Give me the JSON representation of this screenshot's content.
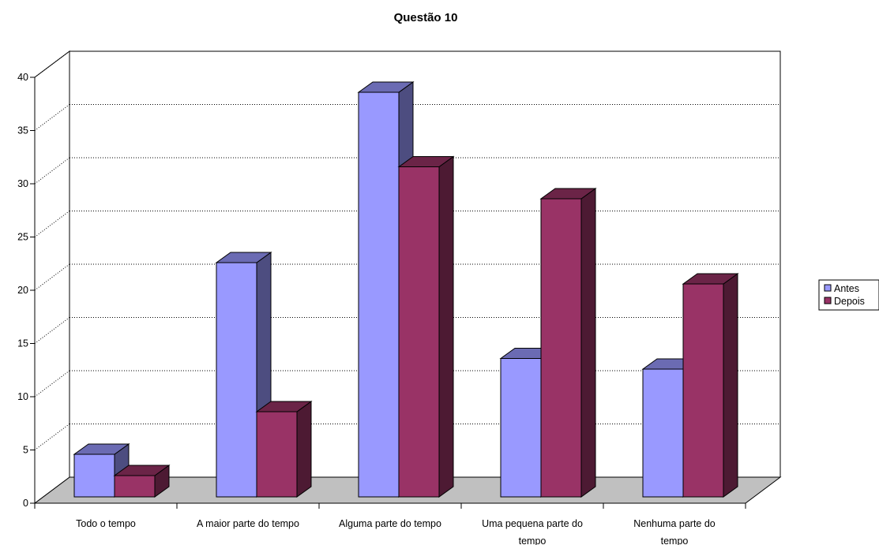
{
  "chart_data": {
    "type": "bar",
    "title": "Questão 10",
    "xlabel": "",
    "ylabel": "",
    "ylim": [
      0,
      40
    ],
    "yticks": [
      "0",
      "5",
      "10",
      "15",
      "20",
      "25",
      "30",
      "35",
      "40"
    ],
    "categories": [
      [
        "Todo o tempo"
      ],
      [
        "A maior parte do tempo"
      ],
      [
        "Alguma parte do tempo"
      ],
      [
        "Uma pequena parte do",
        "tempo"
      ],
      [
        "Nenhuma parte do",
        "tempo"
      ]
    ],
    "series": [
      {
        "name": "Antes",
        "values": [
          4,
          22,
          38,
          13,
          12
        ],
        "color": "#9999ff"
      },
      {
        "name": "Depois",
        "values": [
          2,
          8,
          31,
          28,
          20
        ],
        "color": "#993366"
      }
    ],
    "grid": true,
    "legend_position": "right"
  }
}
